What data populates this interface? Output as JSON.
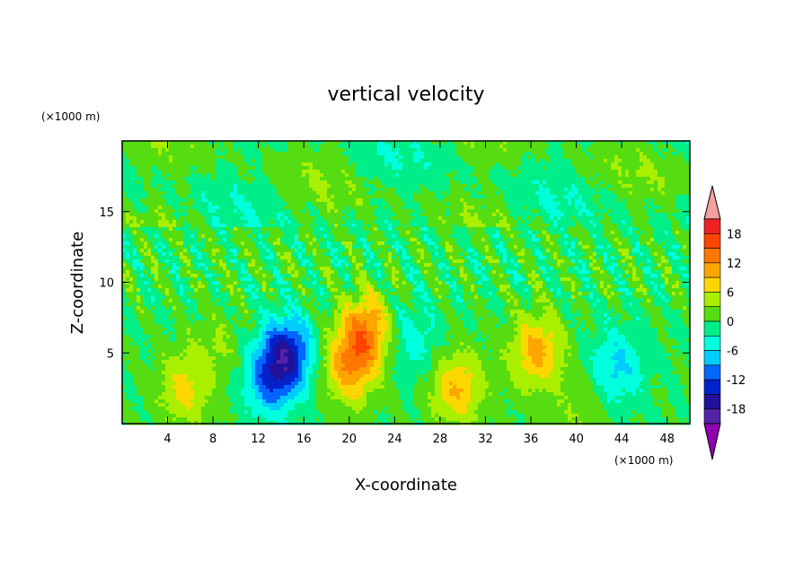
{
  "chart_data": {
    "type": "heatmap",
    "title": "vertical velocity",
    "xlabel": "X-coordinate",
    "ylabel": "Z-coordinate",
    "x_unit": "(×1000 m)",
    "y_unit": "(×1000 m)",
    "x_ticks": [
      4,
      8,
      12,
      16,
      20,
      24,
      28,
      32,
      36,
      40,
      44,
      48
    ],
    "y_ticks": [
      5,
      10,
      15
    ],
    "xlim": [
      0,
      50
    ],
    "ylim": [
      0,
      20
    ],
    "colorbar": {
      "ticks": [
        18,
        12,
        6,
        0,
        -6,
        -12,
        -18
      ],
      "bins": [
        {
          "lo": 18,
          "hi": 21,
          "color": "#ee2222"
        },
        {
          "lo": 15,
          "hi": 18,
          "color": "#ff4400"
        },
        {
          "lo": 12,
          "hi": 15,
          "color": "#ff7700"
        },
        {
          "lo": 9,
          "hi": 12,
          "color": "#ffa500"
        },
        {
          "lo": 6,
          "hi": 9,
          "color": "#ffd700"
        },
        {
          "lo": 3,
          "hi": 6,
          "color": "#aaee00"
        },
        {
          "lo": 0,
          "hi": 3,
          "color": "#55dd11"
        },
        {
          "lo": -3,
          "hi": 0,
          "color": "#00ee88"
        },
        {
          "lo": -6,
          "hi": -3,
          "color": "#00ffdd"
        },
        {
          "lo": -9,
          "hi": -6,
          "color": "#00ccff"
        },
        {
          "lo": -12,
          "hi": -9,
          "color": "#0066ff"
        },
        {
          "lo": -15,
          "hi": -12,
          "color": "#0022cc"
        },
        {
          "lo": -18,
          "hi": -15,
          "color": "#221199"
        },
        {
          "lo": -21,
          "hi": -18,
          "color": "#5522aa"
        }
      ],
      "over_color": "#f4a0a0",
      "under_color": "#9000b0"
    },
    "features": [
      {
        "x": 5.5,
        "z": 2.5,
        "w": 7
      },
      {
        "x": 8.5,
        "z": 5.5,
        "w": 3
      },
      {
        "x": 14.5,
        "z": 5.0,
        "w": -14
      },
      {
        "x": 13.0,
        "z": 3.0,
        "w": -9
      },
      {
        "x": 21.5,
        "z": 6.5,
        "w": 12
      },
      {
        "x": 20.0,
        "z": 4.0,
        "w": 10
      },
      {
        "x": 25.5,
        "z": 6.0,
        "w": -5
      },
      {
        "x": 29.5,
        "z": 2.5,
        "w": 9
      },
      {
        "x": 36.5,
        "z": 5.0,
        "w": 10
      },
      {
        "x": 43.5,
        "z": 4.0,
        "w": -7
      },
      {
        "x": 40.5,
        "z": 1.0,
        "w": 3
      }
    ]
  }
}
